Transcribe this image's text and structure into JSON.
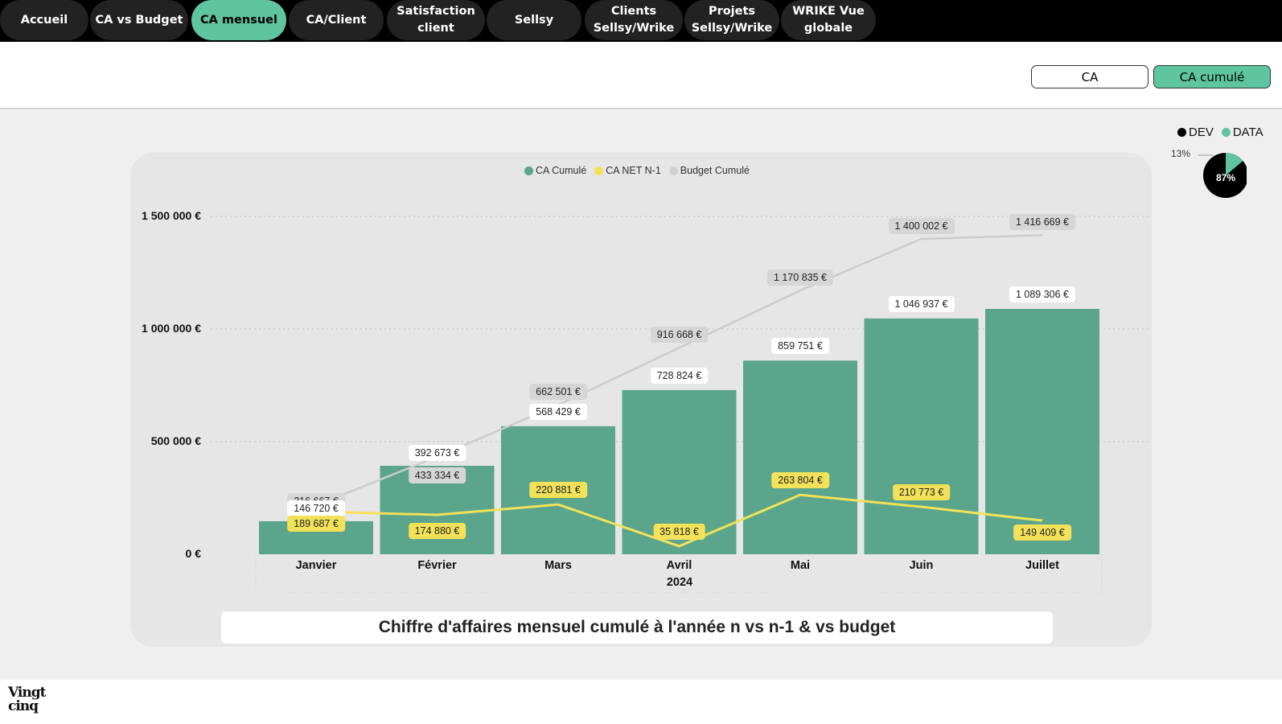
{
  "nav": {
    "items": [
      {
        "label": "Accueil",
        "active": false
      },
      {
        "label": "CA vs Budget",
        "active": false
      },
      {
        "label": "CA mensuel",
        "active": true
      },
      {
        "label": "CA/Client",
        "active": false
      },
      {
        "label": "Satisfaction\nclient",
        "active": false
      },
      {
        "label": "Sellsy",
        "active": false
      },
      {
        "label": "Clients\nSellsy/Wrike",
        "active": false
      },
      {
        "label": "Projets\nSellsy/Wrike",
        "active": false
      },
      {
        "label": "WRIKE Vue\nglobale",
        "active": false
      }
    ]
  },
  "toggles": {
    "ca_label": "CA",
    "ca_cumule_label": "CA cumulé",
    "selected": "CA cumulé"
  },
  "colors": {
    "accent": "#5fc4a0",
    "bar": "#5aa58c",
    "budget_line": "#cccccc",
    "net_line": "#f2e25a",
    "dev": "#000000",
    "data": "#5fc4a0"
  },
  "side_legend": {
    "dev_label": "DEV",
    "data_label": "DATA",
    "dev_pct": "87%",
    "data_pct": "13%"
  },
  "chart_data": {
    "type": "bar",
    "title": "Chiffre d'affaires mensuel cumulé à l'année n vs n-1 & vs budget",
    "year_label": "2024",
    "categories": [
      "Janvier",
      "Février",
      "Mars",
      "Avril",
      "Mai",
      "Juin",
      "Juillet"
    ],
    "y_ticks": [
      "1 500 000 €",
      "1 000 000 €",
      "500 000 €",
      "0 €"
    ],
    "y_tick_values": [
      1500000,
      1000000,
      500000,
      0
    ],
    "ylim": [
      0,
      1500000
    ],
    "grid": true,
    "legend": [
      "CA Cumulé",
      "CA NET N-1",
      "Budget Cumulé"
    ],
    "series": [
      {
        "name": "CA Cumulé",
        "kind": "bar",
        "values": [
          146720,
          392673,
          568429,
          728824,
          859751,
          1046937,
          1089306
        ],
        "labels": [
          "146 720 €",
          "392 673 €",
          "568 429 €",
          "728 824 €",
          "859 751 €",
          "1 046 937 €",
          "1 089 306 €"
        ]
      },
      {
        "name": "CA NET N-1",
        "kind": "line",
        "values": [
          189687,
          174880,
          220881,
          35818,
          263804,
          210773,
          149409
        ],
        "labels": [
          "189 687 €",
          "174 880 €",
          "220 881 €",
          "35 818 €",
          "263 804 €",
          "210 773 €",
          "149 409 €"
        ]
      },
      {
        "name": "Budget Cumulé",
        "kind": "line",
        "values": [
          216667,
          433334,
          662501,
          916668,
          1170835,
          1400002,
          1416669
        ],
        "labels": [
          "216 667 €",
          "433 334 €",
          "662 501 €",
          "916 668 €",
          "1 170 835 €",
          "1 400 002 €",
          "1 416 669 €"
        ]
      }
    ]
  }
}
